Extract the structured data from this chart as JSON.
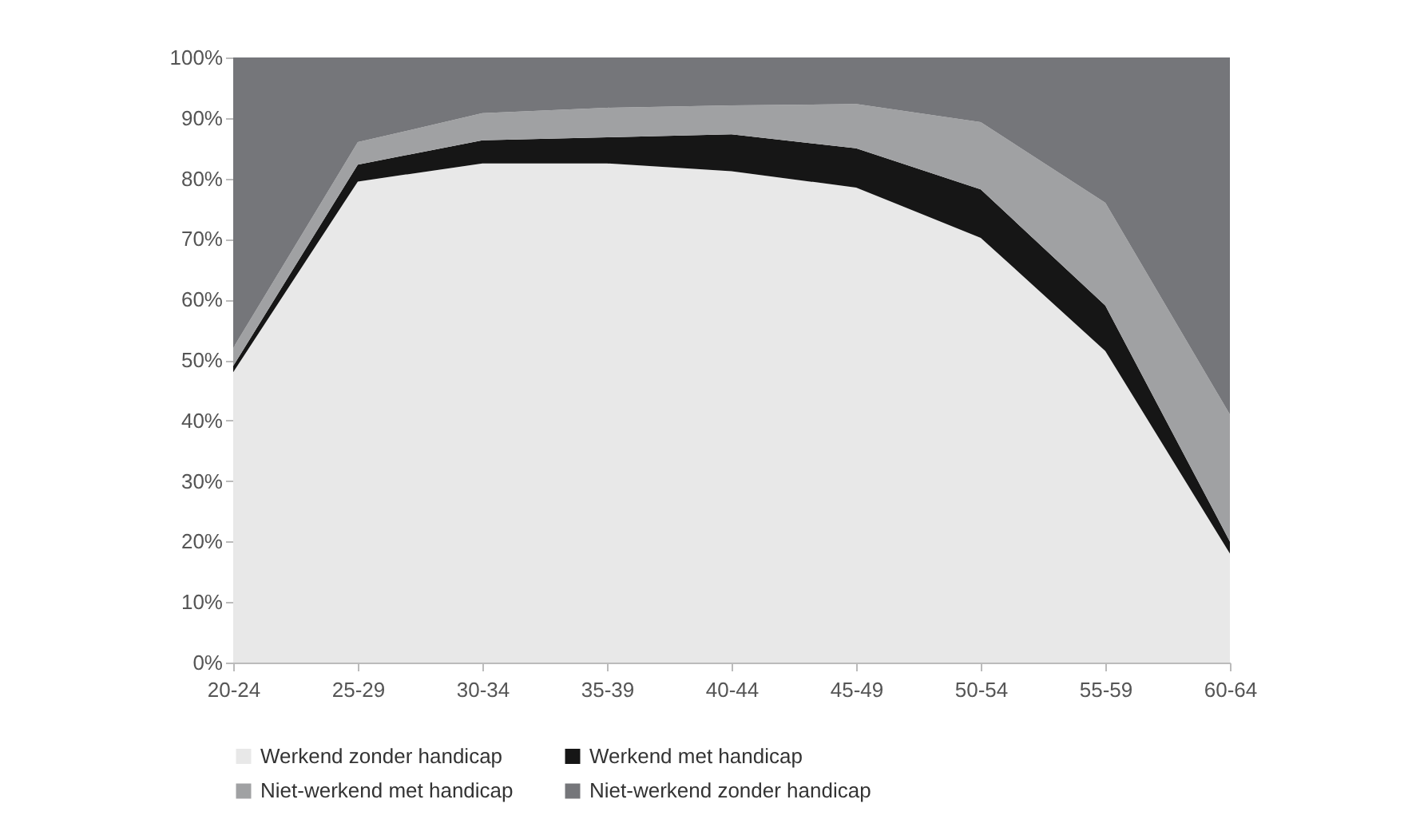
{
  "chart_data": {
    "type": "area",
    "stacked": true,
    "categories": [
      "20-24",
      "25-29",
      "30-34",
      "35-39",
      "40-44",
      "45-49",
      "50-54",
      "55-59",
      "60-64"
    ],
    "series": [
      {
        "name": "Werkend zonder handicap",
        "color": "#e8e8e8",
        "values": [
          48,
          79.5,
          82.5,
          82.5,
          81.2,
          78.5,
          70.2,
          51.5,
          18
        ]
      },
      {
        "name": "Werkend met handicap",
        "color": "#161616",
        "values": [
          1,
          2.8,
          3.8,
          4.3,
          6.1,
          6.5,
          8,
          7.5,
          2
        ]
      },
      {
        "name": "Niet-werkend met handicap",
        "color": "#a0a1a3",
        "values": [
          3,
          3.7,
          4.5,
          4.9,
          4.8,
          7.3,
          11.1,
          17,
          21
        ]
      },
      {
        "name": "Niet-werkend zonder handicap",
        "color": "#75767a",
        "values": [
          48,
          14,
          9.2,
          8.3,
          7.9,
          7.7,
          10.7,
          24,
          59
        ]
      }
    ],
    "ylim": [
      0,
      100
    ],
    "yticks": [
      {
        "value": 0,
        "label": "0%"
      },
      {
        "value": 10,
        "label": "10%"
      },
      {
        "value": 20,
        "label": "20%"
      },
      {
        "value": 30,
        "label": "30%"
      },
      {
        "value": 40,
        "label": "40%"
      },
      {
        "value": 50,
        "label": "50%"
      },
      {
        "value": 60,
        "label": "60%"
      },
      {
        "value": 70,
        "label": "70%"
      },
      {
        "value": 80,
        "label": "80%"
      },
      {
        "value": 90,
        "label": "90%"
      },
      {
        "value": 100,
        "label": "100%"
      }
    ],
    "grid": false,
    "legend": "bottom"
  }
}
